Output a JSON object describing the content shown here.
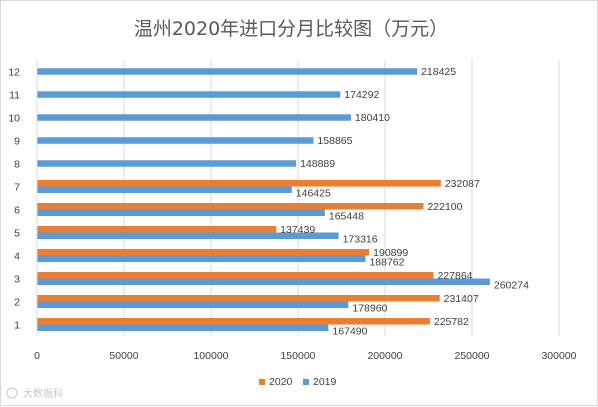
{
  "chart_data": {
    "type": "bar",
    "orientation": "horizontal",
    "title": "温州2020年进口分月比较图（万元）",
    "categories": [
      "1",
      "2",
      "3",
      "4",
      "5",
      "6",
      "7",
      "8",
      "9",
      "10",
      "11",
      "12"
    ],
    "series": [
      {
        "name": "2020",
        "color": "#ED7D31",
        "values": [
          225782,
          231407,
          227864,
          190899,
          137439,
          222100,
          232087,
          null,
          null,
          null,
          null,
          null
        ]
      },
      {
        "name": "2019",
        "color": "#5B9BD5",
        "values": [
          167490,
          178960,
          260274,
          188762,
          173316,
          165448,
          146425,
          148889,
          158865,
          180410,
          174292,
          218425
        ]
      }
    ],
    "x_ticks": [
      "0",
      "50000",
      "100000",
      "150000",
      "200000",
      "250000",
      "300000"
    ],
    "xlim": [
      0,
      300000
    ],
    "grid": true,
    "legend_position": "bottom"
  },
  "watermark": "大数据科"
}
